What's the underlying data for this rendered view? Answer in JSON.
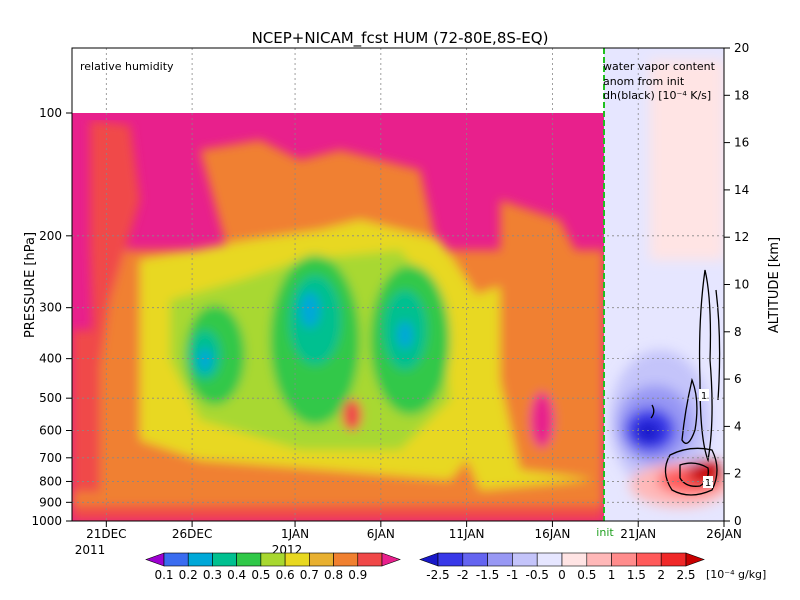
{
  "chart_data": {
    "type": "heatmap",
    "title": "NCEP+NICAM_fcst HUM (72-80E,8S-EQ)",
    "left_panel_label": "relative humidity",
    "right_panel_labels": [
      "water vapor content",
      "anom from init",
      "dh(black) [10⁻⁴ K/s]"
    ],
    "ylabel_left": "PRESSURE [hPa]",
    "ylabel_right": "ALTITUDE [km]",
    "y_left_ticks": [
      "100",
      "200",
      "300",
      "400",
      "500",
      "600",
      "700",
      "800",
      "900",
      "1000"
    ],
    "y_right_ticks": [
      "0",
      "2",
      "4",
      "6",
      "8",
      "10",
      "12",
      "14",
      "16",
      "18",
      "20"
    ],
    "y_right_range": [
      0,
      20
    ],
    "y_left_range_hPa": [
      1000,
      100
    ],
    "x_ticks": [
      "21DEC",
      "26DEC",
      "1JAN",
      "6JAN",
      "11JAN",
      "16JAN",
      "21JAN",
      "26JAN"
    ],
    "x_year_labels": [
      "2011",
      "2012"
    ],
    "init_label": "init",
    "init_date": "2012-01-19",
    "x_range": [
      "2011-12-19",
      "2012-01-26"
    ],
    "humidity_colorbar": {
      "levels": [
        "0.1",
        "0.2",
        "0.3",
        "0.4",
        "0.5",
        "0.6",
        "0.7",
        "0.8",
        "0.9"
      ],
      "colors": [
        "#9d00d0",
        "#3a6cf0",
        "#00a8d8",
        "#00c090",
        "#30c848",
        "#a8d830",
        "#e8d820",
        "#e8b030",
        "#f08030",
        "#f04848",
        "#e8208c"
      ]
    },
    "anomaly_colorbar": {
      "levels": [
        "-2.5",
        "-2",
        "-1.5",
        "-1",
        "-0.5",
        "0",
        "0.5",
        "1",
        "1.5",
        "2",
        "2.5"
      ],
      "unit": "[10⁻⁴ g/kg]",
      "colors": [
        "#1818c8",
        "#3838e8",
        "#6464f0",
        "#9898f4",
        "#c4c4fa",
        "#e6e6ff",
        "#ffe4e4",
        "#ffb8b8",
        "#ff8c8c",
        "#ff5a5a",
        "#f02828",
        "#c80000"
      ]
    },
    "contour_label": "1",
    "grid": true
  }
}
